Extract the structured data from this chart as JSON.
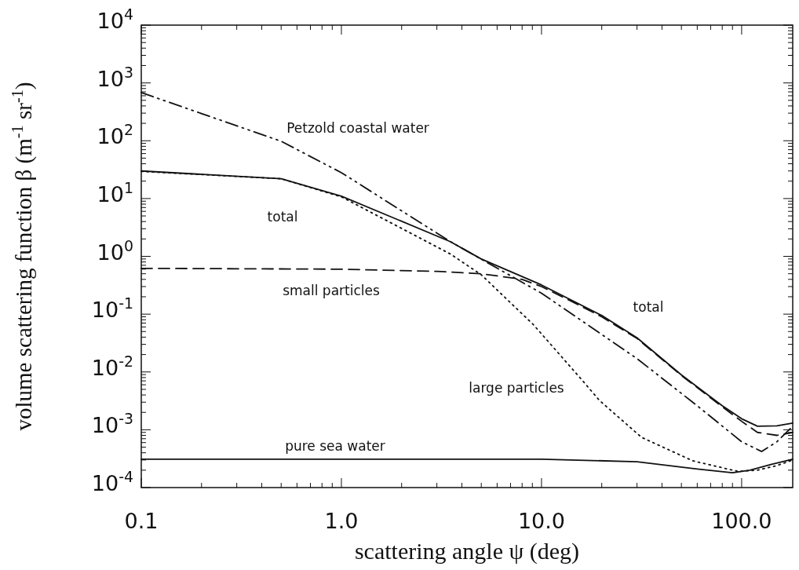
{
  "chart_data": {
    "type": "line",
    "xlabel": "scattering angle ψ (deg)",
    "ylabel": "volume scattering function β (m$^{-1}$ sr$^{-1}$)",
    "log": "xy",
    "grid": false,
    "marker": "none",
    "xlim": [
      0.1,
      180
    ],
    "xticks": [
      0.1,
      {
        "value": 1,
        "label": "1.0"
      },
      {
        "value": 10,
        "label": "10.0"
      },
      {
        "value": 100,
        "label": "100.0"
      }
    ],
    "ylim": [
      0.0001,
      10000
    ],
    "yticks": [
      {
        "value": 0.0001,
        "label": "10$^{-4}$"
      },
      {
        "value": 0.001,
        "label": "10$^{-3}$"
      },
      {
        "value": 0.01,
        "label": "10$^{-2}$"
      },
      {
        "value": 0.1,
        "label": "10$^{-1}$"
      },
      {
        "value": 1,
        "label": "10$^{0}$"
      },
      {
        "value": 10,
        "label": "10$^{1}$"
      },
      {
        "value": 100,
        "label": "10$^{2}$"
      },
      {
        "value": 1000,
        "label": "10$^{3}$"
      },
      {
        "value": 10000,
        "label": "10$^{4}$"
      }
    ],
    "series": [
      {
        "name": "Petzold coastal water",
        "color": "#111111",
        "line_style": "dashdotdot",
        "x": [
          0.1,
          0.5,
          1,
          3.5,
          10,
          30,
          60,
          100,
          126,
          150,
          180
        ],
        "values": [
          680,
          98,
          28,
          1.8,
          0.23,
          0.017,
          0.0026,
          0.00062,
          0.00042,
          0.00062,
          0.00115
        ]
      },
      {
        "name": "total",
        "color": "#111111",
        "line_style": "solid",
        "x": [
          0.1,
          0.5,
          1,
          3.5,
          5,
          10,
          20,
          30,
          50,
          80,
          100,
          120,
          150,
          180
        ],
        "values": [
          30,
          22,
          11,
          1.8,
          0.9,
          0.32,
          0.095,
          0.039,
          0.0089,
          0.0026,
          0.00155,
          0.00115,
          0.00117,
          0.0013
        ]
      },
      {
        "name": "small particles",
        "color": "#111111",
        "line_style": "dashed",
        "x": [
          0.1,
          1,
          3,
          5,
          8,
          10,
          15,
          20,
          30,
          50,
          80,
          100,
          120,
          150,
          180
        ],
        "values": [
          0.62,
          0.6,
          0.55,
          0.5,
          0.4,
          0.3,
          0.15,
          0.09,
          0.038,
          0.0087,
          0.0025,
          0.0014,
          0.0009,
          0.0008,
          0.0009
        ]
      },
      {
        "name": "large particles",
        "color": "#111111",
        "line_style": "dotted",
        "x": [
          0.1,
          0.5,
          1,
          3.5,
          5,
          9.1,
          15.5,
          19.5,
          31.6,
          57,
          96,
          120,
          150,
          180
        ],
        "values": [
          29.5,
          22,
          10.7,
          1.1,
          0.48,
          0.066,
          0.0081,
          0.0032,
          0.00074,
          0.00029,
          0.00019,
          0.0002,
          0.00024,
          0.0003
        ]
      },
      {
        "name": "pure sea water",
        "color": "#111111",
        "line_style": "solid",
        "x": [
          0.1,
          1,
          10,
          30,
          60,
          90,
          110,
          140,
          180
        ],
        "values": [
          0.00031,
          0.00031,
          0.00031,
          0.00028,
          0.00021,
          0.00018,
          0.0002,
          0.00025,
          0.00031
        ]
      }
    ],
    "annotations": [
      "total"
    ]
  }
}
